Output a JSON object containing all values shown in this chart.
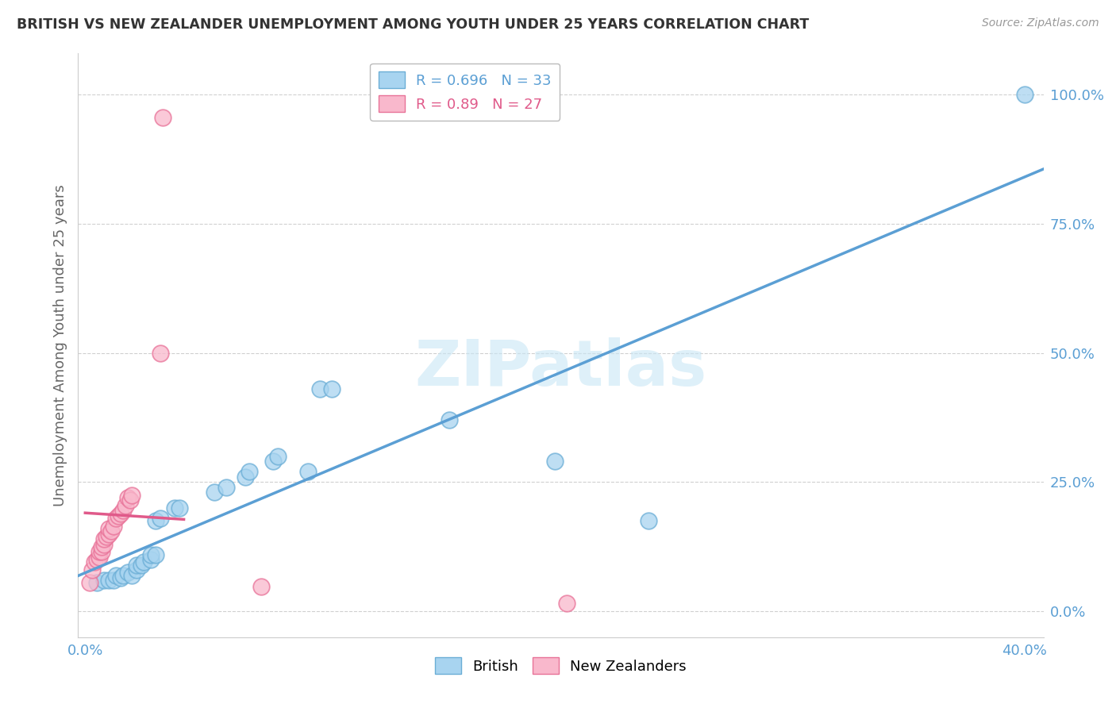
{
  "title": "BRITISH VS NEW ZEALANDER UNEMPLOYMENT AMONG YOUTH UNDER 25 YEARS CORRELATION CHART",
  "source": "Source: ZipAtlas.com",
  "ylabel": "Unemployment Among Youth under 25 years",
  "xlim": [
    -0.003,
    0.408
  ],
  "ylim": [
    -0.05,
    1.08
  ],
  "ytick_vals": [
    0.0,
    0.25,
    0.5,
    0.75,
    1.0
  ],
  "ytick_labels": [
    "0.0%",
    "25.0%",
    "50.0%",
    "75.0%",
    "100.0%"
  ],
  "xtick_vals": [
    0.0,
    0.1,
    0.2,
    0.3,
    0.4
  ],
  "xtick_labels": [
    "0.0%",
    "",
    "",
    "",
    "40.0%"
  ],
  "british_R": 0.696,
  "british_N": 33,
  "nz_R": 0.89,
  "nz_N": 27,
  "british_color": "#a8d4f0",
  "british_edge": "#6baed6",
  "nz_color": "#f9b8cc",
  "nz_edge": "#e87298",
  "line_british": "#5b9fd4",
  "line_nz": "#e05a8a",
  "watermark_color": "#c8e6f5",
  "british_points": [
    [
      0.005,
      0.055
    ],
    [
      0.008,
      0.06
    ],
    [
      0.01,
      0.06
    ],
    [
      0.012,
      0.06
    ],
    [
      0.013,
      0.07
    ],
    [
      0.015,
      0.065
    ],
    [
      0.016,
      0.07
    ],
    [
      0.018,
      0.075
    ],
    [
      0.02,
      0.07
    ],
    [
      0.022,
      0.08
    ],
    [
      0.022,
      0.09
    ],
    [
      0.024,
      0.09
    ],
    [
      0.025,
      0.095
    ],
    [
      0.028,
      0.1
    ],
    [
      0.028,
      0.11
    ],
    [
      0.03,
      0.11
    ],
    [
      0.03,
      0.175
    ],
    [
      0.032,
      0.18
    ],
    [
      0.038,
      0.2
    ],
    [
      0.04,
      0.2
    ],
    [
      0.055,
      0.23
    ],
    [
      0.06,
      0.24
    ],
    [
      0.068,
      0.26
    ],
    [
      0.07,
      0.27
    ],
    [
      0.08,
      0.29
    ],
    [
      0.082,
      0.3
    ],
    [
      0.095,
      0.27
    ],
    [
      0.1,
      0.43
    ],
    [
      0.105,
      0.43
    ],
    [
      0.155,
      0.37
    ],
    [
      0.2,
      0.29
    ],
    [
      0.24,
      0.175
    ],
    [
      0.4,
      1.0
    ]
  ],
  "nz_points": [
    [
      0.002,
      0.055
    ],
    [
      0.003,
      0.08
    ],
    [
      0.004,
      0.095
    ],
    [
      0.005,
      0.1
    ],
    [
      0.006,
      0.105
    ],
    [
      0.006,
      0.115
    ],
    [
      0.007,
      0.115
    ],
    [
      0.007,
      0.125
    ],
    [
      0.008,
      0.13
    ],
    [
      0.008,
      0.14
    ],
    [
      0.009,
      0.145
    ],
    [
      0.01,
      0.15
    ],
    [
      0.01,
      0.16
    ],
    [
      0.011,
      0.155
    ],
    [
      0.012,
      0.165
    ],
    [
      0.013,
      0.18
    ],
    [
      0.014,
      0.185
    ],
    [
      0.015,
      0.19
    ],
    [
      0.016,
      0.195
    ],
    [
      0.017,
      0.205
    ],
    [
      0.018,
      0.22
    ],
    [
      0.019,
      0.215
    ],
    [
      0.02,
      0.225
    ],
    [
      0.032,
      0.5
    ],
    [
      0.033,
      0.955
    ],
    [
      0.075,
      0.048
    ],
    [
      0.205,
      0.015
    ]
  ],
  "nz_line_x": [
    0.0,
    0.042
  ],
  "british_line_x": [
    -0.003,
    0.408
  ]
}
